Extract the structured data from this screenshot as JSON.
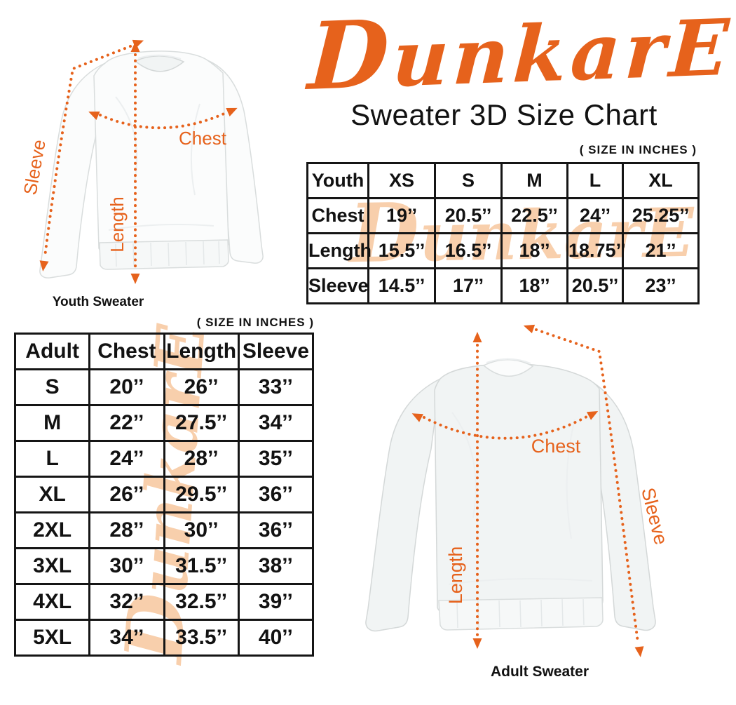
{
  "brand": {
    "logo_text": "DunkarE",
    "subtitle": "Sweater 3D Size Chart",
    "size_note": "( SIZE IN INCHES )"
  },
  "colors": {
    "accent": "#E6621C",
    "watermark": "#F8CFAC",
    "ink": "#121212"
  },
  "youth_diagram": {
    "caption": "Youth Sweater",
    "labels": {
      "chest": "Chest",
      "length": "Length",
      "sleeve": "Sleeve"
    }
  },
  "adult_diagram": {
    "caption": "Adult Sweater",
    "labels": {
      "chest": "Chest",
      "length": "Length",
      "sleeve": "Sleeve"
    }
  },
  "youth_table": {
    "size_note": "( SIZE IN INCHES )",
    "header": [
      "Youth",
      "XS",
      "S",
      "M",
      "L",
      "XL"
    ],
    "rows": [
      {
        "label": "Chest",
        "values": [
          "19’’",
          "20.5’’",
          "22.5’’",
          "24’’",
          "25.25’’"
        ]
      },
      {
        "label": "Length",
        "values": [
          "15.5’’",
          "16.5’’",
          "18’’",
          "18.75’’",
          "21’’"
        ]
      },
      {
        "label": "Sleeve",
        "values": [
          "14.5’’",
          "17’’",
          "18’’",
          "20.5’’",
          "23’’"
        ]
      }
    ]
  },
  "adult_table": {
    "size_note": "( SIZE IN INCHES )",
    "header": [
      "Adult",
      "Chest",
      "Length",
      "Sleeve"
    ],
    "rows": [
      [
        "S",
        "20’’",
        "26’’",
        "33’’"
      ],
      [
        "M",
        "22’’",
        "27.5’’",
        "34’’"
      ],
      [
        "L",
        "24’’",
        "28’’",
        "35’’"
      ],
      [
        "XL",
        "26’’",
        "29.5’’",
        "36’’"
      ],
      [
        "2XL",
        "28’’",
        "30’’",
        "36’’"
      ],
      [
        "3XL",
        "30’’",
        "31.5’’",
        "38’’"
      ],
      [
        "4XL",
        "32’’",
        "32.5’’",
        "39’’"
      ],
      [
        "5XL",
        "34’’",
        "33.5’’",
        "40’’"
      ]
    ]
  },
  "chart_data": [
    {
      "type": "table",
      "title": "Youth Sweater 3D Size Chart ( size in inches )",
      "columns": [
        "Youth",
        "XS",
        "S",
        "M",
        "L",
        "XL"
      ],
      "rows": [
        [
          "Chest",
          19,
          20.5,
          22.5,
          24,
          25.25
        ],
        [
          "Length",
          15.5,
          16.5,
          18,
          18.75,
          21
        ],
        [
          "Sleeve",
          14.5,
          17,
          18,
          20.5,
          23
        ]
      ]
    },
    {
      "type": "table",
      "title": "Adult Sweater 3D Size Chart ( size in inches )",
      "columns": [
        "Adult",
        "Chest",
        "Length",
        "Sleeve"
      ],
      "rows": [
        [
          "S",
          20,
          26,
          33
        ],
        [
          "M",
          22,
          27.5,
          34
        ],
        [
          "L",
          24,
          28,
          35
        ],
        [
          "XL",
          26,
          29.5,
          36
        ],
        [
          "2XL",
          28,
          30,
          36
        ],
        [
          "3XL",
          30,
          31.5,
          38
        ],
        [
          "4XL",
          32,
          32.5,
          39
        ],
        [
          "5XL",
          34,
          33.5,
          40
        ]
      ]
    }
  ]
}
